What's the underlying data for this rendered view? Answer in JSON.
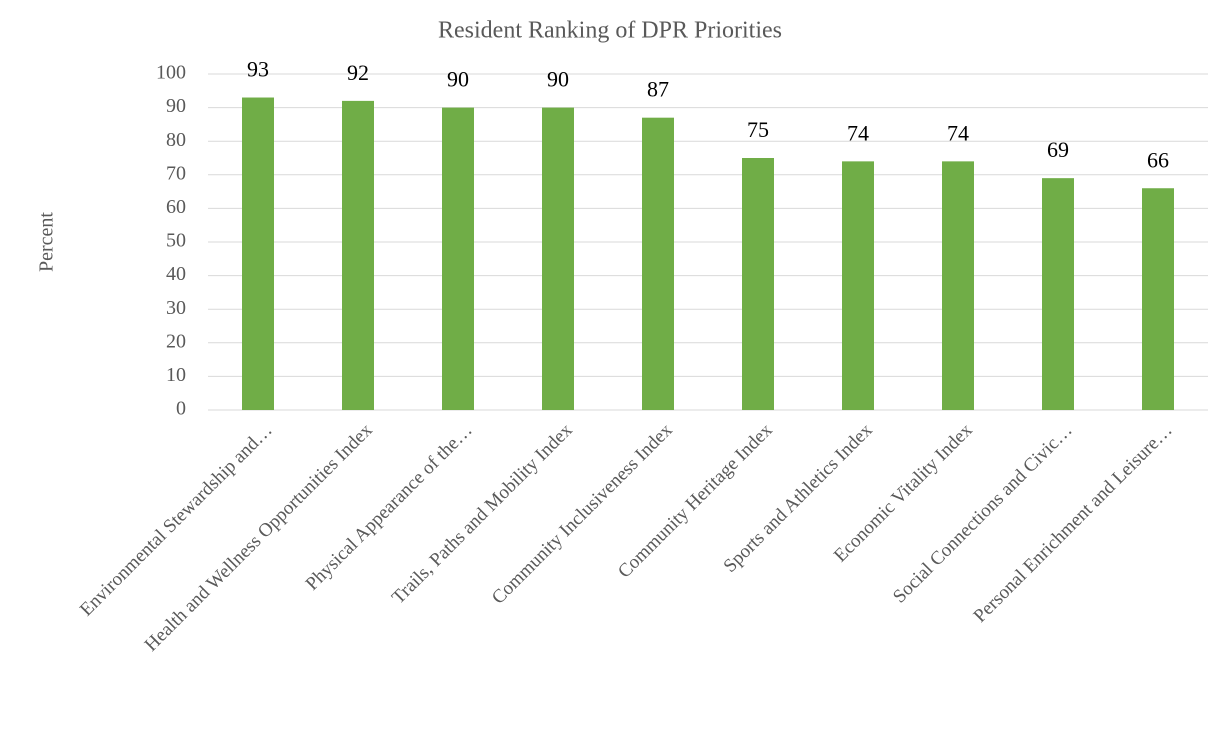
{
  "chart_data": {
    "type": "bar",
    "title": "Resident Ranking of DPR Priorities",
    "y_label": "Percent",
    "categories": [
      "Environmental Stewardship and…",
      "Health and Wellness Opportunities Index",
      "Physical Appearance of the…",
      "Trails, Paths and Mobility Index",
      "Community Inclusiveness Index",
      "Community Heritage Index",
      "Sports and Athletics Index",
      "Economic Vitality Index",
      "Social Connections and Civic…",
      "Personal Enrichment and Leisure…"
    ],
    "values": [
      93,
      92,
      90,
      90,
      87,
      75,
      74,
      74,
      69,
      66
    ],
    "color": "#70ad47",
    "ylim": [
      0,
      100
    ],
    "yticks": [
      0,
      10,
      20,
      30,
      40,
      50,
      60,
      70,
      80,
      90,
      100
    ],
    "grid": true,
    "data_labels": true
  }
}
